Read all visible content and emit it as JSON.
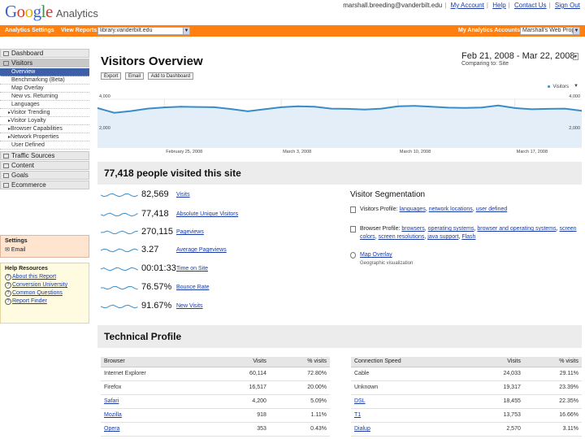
{
  "header": {
    "logo_text": "Google",
    "product": "Analytics",
    "email": "marshall.breeding@vanderbilt.edu",
    "links": [
      "My Account",
      "Help",
      "Contact Us",
      "Sign Out"
    ]
  },
  "toolbar": {
    "settings_label": "Analytics Settings",
    "view_reports_label": "View Reports:",
    "view_reports_value": "library.vanderbilt.edu",
    "accounts_label": "My Analytics Accounts:",
    "accounts_value": "Marshall's Web Prop"
  },
  "sidebar": {
    "dashboard": "Dashboard",
    "visitors": "Visitors",
    "visitor_items": [
      "Overview",
      "Benchmarking (Beta)",
      "Map Overlay",
      "New vs. Returning",
      "Languages",
      "Visitor Trending",
      "Visitor Loyalty",
      "Browser Capabilities",
      "Network Properties",
      "User Defined"
    ],
    "traffic_sources": "Traffic Sources",
    "content": "Content",
    "goals": "Goals",
    "ecommerce": "Ecommerce",
    "settings_title": "Settings",
    "settings_email": "Email",
    "help_title": "Help Resources",
    "help_items": [
      "About this Report",
      "Conversion University",
      "Common Questions",
      "Report Finder"
    ]
  },
  "main": {
    "title": "Visitors Overview",
    "actions": [
      "Export",
      "Email",
      "Add to Dashboard"
    ],
    "date_range": "Feb 21, 2008 - Mar 22, 2008",
    "comparing": "Comparing to: Site",
    "legend_label": "Visitors",
    "summary_title": "77,418 people visited this site",
    "segmentation_title": "Visitor Segmentation",
    "seg_profile_label": "Visitors Profile:",
    "seg_profile_links": [
      "languages",
      "network locations",
      "user defined"
    ],
    "seg_browser_label": "Browser Profile:",
    "seg_browser_links": [
      "browsers",
      "operating systems",
      "browser and operating systems",
      "screen colors",
      "screen resolutions",
      "java support",
      "Flash"
    ],
    "seg_map_label": "Map Overlay",
    "seg_map_sub": "Geographic visualization",
    "tech_title": "Technical Profile"
  },
  "metrics": [
    {
      "value": "82,569",
      "label": "Visits"
    },
    {
      "value": "77,418",
      "label": "Absolute Unique Visitors"
    },
    {
      "value": "270,115",
      "label": "Pageviews"
    },
    {
      "value": "3.27",
      "label": "Average Pageviews"
    },
    {
      "value": "00:01:33",
      "label": "Time on Site"
    },
    {
      "value": "76.57%",
      "label": "Bounce Rate"
    },
    {
      "value": "91.67%",
      "label": "New Visits"
    }
  ],
  "browser_table": {
    "headers": [
      "Browser",
      "Visits",
      "% visits"
    ],
    "rows": [
      [
        "Internet Explorer",
        "60,114",
        "72.80%"
      ],
      [
        "Firefox",
        "16,517",
        "20.00%"
      ],
      [
        "Safari",
        "4,200",
        "5.09%"
      ],
      [
        "Mozilla",
        "918",
        "1.11%"
      ],
      [
        "Opera",
        "353",
        "0.43%"
      ]
    ]
  },
  "connection_table": {
    "headers": [
      "Connection Speed",
      "Visits",
      "% visits"
    ],
    "rows": [
      [
        "Cable",
        "24,033",
        "29.11%"
      ],
      [
        "Unknown",
        "19,317",
        "23.39%"
      ],
      [
        "DSL",
        "18,455",
        "22.35%"
      ],
      [
        "T1",
        "13,753",
        "16.66%"
      ],
      [
        "Dialup",
        "2,570",
        "3.11%"
      ]
    ]
  },
  "chart_data": {
    "type": "area",
    "title": "",
    "series": [
      {
        "name": "Visitors",
        "values": [
          3300,
          2920,
          3060,
          3250,
          3350,
          3400,
          3380,
          3360,
          3220,
          3040,
          3200,
          3360,
          3440,
          3400,
          3250,
          3230,
          3180,
          3250,
          3430,
          3470,
          3400,
          3330,
          3310,
          3340,
          3500,
          3300,
          3200,
          3230,
          3250,
          3080
        ]
      }
    ],
    "x_tick_labels": [
      "February 25, 2008",
      "March 3, 2008",
      "March 10, 2008",
      "March 17, 2008"
    ],
    "y_tick_labels": [
      "4,000",
      "2,000"
    ],
    "ylim": [
      0,
      4000
    ]
  },
  "colors": {
    "accent": "#ff7f11",
    "series": "#3a8cc7",
    "fill": "#e3eef8"
  }
}
